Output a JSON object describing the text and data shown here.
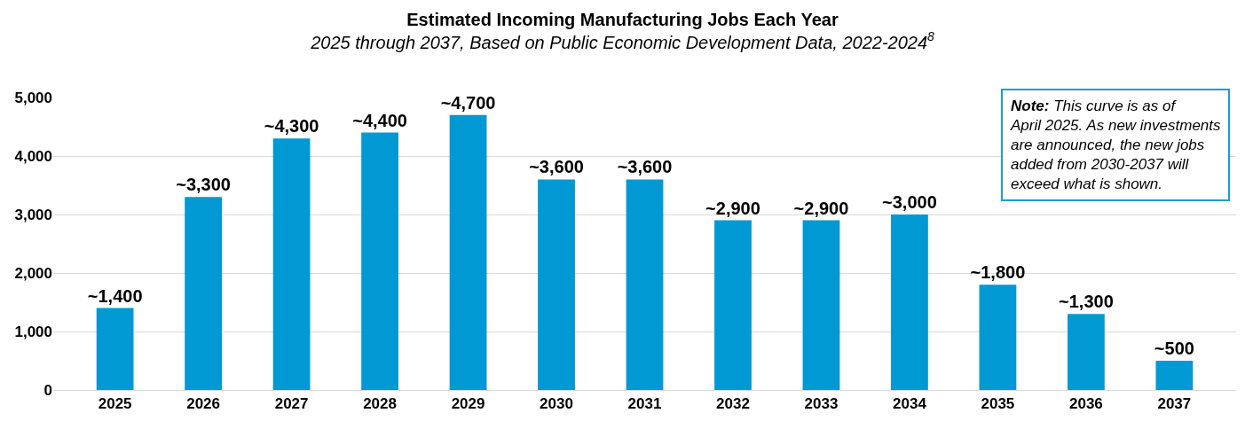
{
  "chart_data": {
    "type": "bar",
    "title": "Estimated Incoming Manufacturing Jobs Each Year",
    "subtitle": "2025 through 2037, Based on Public Economic Development Data, 2022-2024$^{8}$",
    "categories": [
      "2025",
      "2026",
      "2027",
      "2028",
      "2029",
      "2030",
      "2031",
      "2032",
      "2033",
      "2034",
      "2035",
      "2036",
      "2037"
    ],
    "values": [
      1400,
      3300,
      4300,
      4400,
      4700,
      3600,
      3600,
      2900,
      2900,
      3000,
      1800,
      1300,
      500
    ],
    "value_labels": [
      "~1,400",
      "~3,300",
      "~4,300",
      "~4,400",
      "~4,700",
      "~3,600",
      "~3,600",
      "~2,900",
      "~2,900",
      "~3,000",
      "~1,800",
      "~1,300",
      "~500"
    ],
    "color": "#0099d4",
    "ylim": [
      0,
      5000
    ],
    "yticks": [
      {
        "value": 0,
        "label": "0"
      },
      {
        "value": 1000,
        "label": "1,000"
      },
      {
        "value": 2000,
        "label": "2,000"
      },
      {
        "value": 3000,
        "label": "3,000"
      },
      {
        "value": 4000,
        "label": "4,000"
      },
      {
        "value": 5000,
        "label": "5,000"
      }
    ],
    "grid": "y",
    "legend": false,
    "annotations": [
      "Note: This curve is as of April 2025. As new investments are announced, the new jobs added from 2030-2037 will exceed what is shown."
    ]
  }
}
